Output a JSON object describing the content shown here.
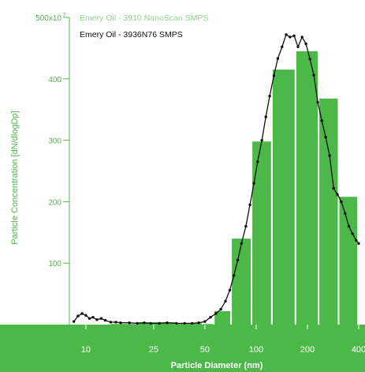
{
  "chart_data": {
    "type": "bar",
    "title": "",
    "xlabel": "Particle Diameter (nm)",
    "ylabel": "Particle Concentration [dN/dlogDp]",
    "x_scale": "log",
    "xlim": [
      8,
      400
    ],
    "ylim": [
      0,
      500
    ],
    "x_ticks": [
      10,
      25,
      50,
      100,
      200,
      400
    ],
    "x_tick_labels": [
      "10",
      "25",
      "50",
      "100",
      "200",
      "400"
    ],
    "y_ticks": [
      100,
      200,
      300,
      400,
      500
    ],
    "y_tick_labels": [
      "100",
      "200",
      "300",
      "400",
      "500x10"
    ],
    "y_tick_exponent": "7",
    "grid": false,
    "legend_position": "top-left",
    "colors": {
      "bars": "#4cb848",
      "line": "#111111",
      "axis_band": "#4cb848",
      "axis_text": "#4cb848"
    },
    "series": [
      {
        "name": "Emery Oil - 3910 NanoScan SMPS",
        "kind": "bar",
        "bins": [
          {
            "x0": 14,
            "x1": 20,
            "value": 1
          },
          {
            "x0": 20,
            "x1": 34,
            "value": 4
          },
          {
            "x0": 34,
            "x1": 49,
            "value": 2
          },
          {
            "x0": 49,
            "x1": 57,
            "value": 1
          },
          {
            "x0": 57,
            "x1": 72,
            "value": 22
          },
          {
            "x0": 72,
            "x1": 95,
            "value": 140
          },
          {
            "x0": 95,
            "x1": 125,
            "value": 298
          },
          {
            "x0": 125,
            "x1": 172,
            "value": 415
          },
          {
            "x0": 172,
            "x1": 235,
            "value": 445
          },
          {
            "x0": 235,
            "x1": 308,
            "value": 368
          },
          {
            "x0": 308,
            "x1": 400,
            "value": 208
          }
        ]
      },
      {
        "name": "Emery Oil - 3936N76 SMPS",
        "kind": "line",
        "points": [
          [
            8.5,
            5
          ],
          [
            9,
            14
          ],
          [
            9.5,
            18
          ],
          [
            10,
            15
          ],
          [
            10.5,
            10
          ],
          [
            11,
            12
          ],
          [
            11.6,
            8
          ],
          [
            12.3,
            10
          ],
          [
            13,
            7
          ],
          [
            14,
            4
          ],
          [
            15,
            4
          ],
          [
            16,
            3
          ],
          [
            18,
            3
          ],
          [
            20,
            2
          ],
          [
            22,
            3
          ],
          [
            24,
            2
          ],
          [
            27,
            2
          ],
          [
            30,
            3
          ],
          [
            34,
            2
          ],
          [
            38,
            2
          ],
          [
            42,
            2
          ],
          [
            46,
            3
          ],
          [
            50,
            5
          ],
          [
            54,
            12
          ],
          [
            58,
            18
          ],
          [
            62,
            25
          ],
          [
            66,
            38
          ],
          [
            70,
            56
          ],
          [
            74,
            80
          ],
          [
            78,
            105
          ],
          [
            82,
            132
          ],
          [
            87,
            160
          ],
          [
            92,
            195
          ],
          [
            97,
            230
          ],
          [
            102,
            265
          ],
          [
            108,
            300
          ],
          [
            114,
            338
          ],
          [
            120,
            372
          ],
          [
            127,
            405
          ],
          [
            134,
            433
          ],
          [
            142,
            452
          ],
          [
            150,
            472
          ],
          [
            158,
            468
          ],
          [
            167,
            470
          ],
          [
            176,
            452
          ],
          [
            186,
            468
          ],
          [
            196,
            457
          ],
          [
            207,
            432
          ],
          [
            218,
            406
          ],
          [
            230,
            362
          ],
          [
            243,
            332
          ],
          [
            256,
            305
          ],
          [
            270,
            275
          ],
          [
            285,
            222
          ],
          [
            300,
            212
          ],
          [
            316,
            200
          ],
          [
            333,
            181
          ],
          [
            350,
            160
          ],
          [
            368,
            148
          ],
          [
            387,
            137
          ],
          [
            400,
            132
          ]
        ]
      }
    ]
  }
}
